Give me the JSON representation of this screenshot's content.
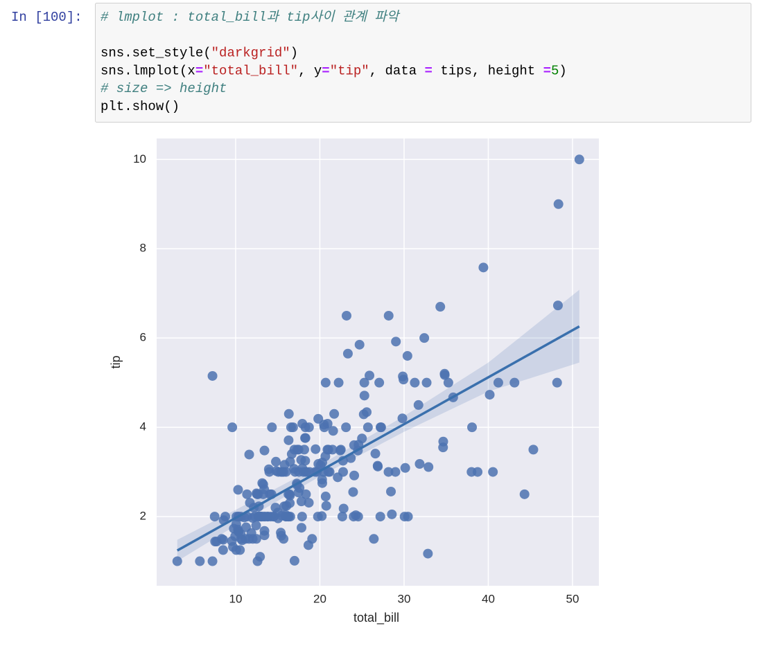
{
  "cell": {
    "prompt": "In [100]:",
    "lines": [
      [
        {
          "text": "# lmplot : total_bill과 tip사이 관계 파악",
          "kind": "comment"
        }
      ],
      [],
      [
        {
          "text": "sns.set_style(",
          "kind": "plain"
        },
        {
          "text": "\"darkgrid\"",
          "kind": "string"
        },
        {
          "text": ")",
          "kind": "plain"
        }
      ],
      [
        {
          "text": "sns.lmplot(x",
          "kind": "plain"
        },
        {
          "text": "=",
          "kind": "op"
        },
        {
          "text": "\"total_bill\"",
          "kind": "string"
        },
        {
          "text": ", y",
          "kind": "plain"
        },
        {
          "text": "=",
          "kind": "op"
        },
        {
          "text": "\"tip\"",
          "kind": "string"
        },
        {
          "text": ", data ",
          "kind": "plain"
        },
        {
          "text": "=",
          "kind": "op"
        },
        {
          "text": " tips, height ",
          "kind": "plain"
        },
        {
          "text": "=",
          "kind": "op"
        },
        {
          "text": "5",
          "kind": "num"
        },
        {
          "text": ")",
          "kind": "plain"
        }
      ],
      [
        {
          "text": "# size => height",
          "kind": "comment"
        }
      ],
      [
        {
          "text": "plt.show()",
          "kind": "plain"
        }
      ]
    ]
  },
  "chart_data": {
    "type": "scatter",
    "x_label": "total_bill",
    "y_label": "tip",
    "color": "#4c72b0",
    "x": [
      16.99,
      10.34,
      21.01,
      23.68,
      24.59,
      25.29,
      8.77,
      26.88,
      15.04,
      14.78,
      10.27,
      35.26,
      15.42,
      18.43,
      14.83,
      21.58,
      10.33,
      16.29,
      16.97,
      20.65,
      17.92,
      20.29,
      15.77,
      39.42,
      19.82,
      17.81,
      13.37,
      12.69,
      21.7,
      19.65,
      9.55,
      18.35,
      15.06,
      20.69,
      17.78,
      24.06,
      16.31,
      16.93,
      18.69,
      31.27,
      16.04,
      17.46,
      13.94,
      9.68,
      30.4,
      18.29,
      22.23,
      32.4,
      28.55,
      18.04,
      12.54,
      10.29,
      34.81,
      9.94,
      25.56,
      19.49,
      38.01,
      26.41,
      11.24,
      48.27,
      20.29,
      13.81,
      11.02,
      18.29,
      17.59,
      20.08,
      16.45,
      3.07,
      20.23,
      15.01,
      12.02,
      17.07,
      26.86,
      25.28,
      14.73,
      10.51,
      17.92,
      27.2,
      22.76,
      17.29,
      19.44,
      16.66,
      10.07,
      32.68,
      15.98,
      34.83,
      13.03,
      18.28,
      24.71,
      21.16,
      28.97,
      22.49,
      5.75,
      16.32,
      22.75,
      40.17,
      27.28,
      12.03,
      21.01,
      12.46,
      11.35,
      15.38,
      44.3,
      22.42,
      20.92,
      15.36,
      20.49,
      25.21,
      18.24,
      14.31,
      14,
      7.25,
      38.07,
      23.95,
      25.71,
      17.31,
      29.93,
      10.65,
      12.43,
      24.08,
      11.69,
      13.42,
      14.26,
      15.95,
      12.48,
      29.8,
      8.52,
      14.52,
      11.38,
      22.82,
      19.08,
      20.27,
      11.17,
      12.26,
      18.26,
      8.51,
      10.33,
      14.15,
      16,
      13.16,
      17.47,
      34.3,
      41.19,
      27.05,
      16.43,
      8.35,
      18.64,
      11.87,
      9.78,
      7.51,
      14.07,
      13.13,
      17.26,
      24.55,
      19.77,
      29.85,
      48.17,
      25,
      13.39,
      16.49,
      21.5,
      12.66,
      16.21,
      13.81,
      17.51,
      24.52,
      20.76,
      31.71,
      10.59,
      10.63,
      50.81,
      15.81,
      7.25,
      31.85,
      16.82,
      32.9,
      17.89,
      14.48,
      9.6,
      34.63,
      34.65,
      23.33,
      45.35,
      23.17,
      40.55,
      20.69,
      20.9,
      30.46,
      18.15,
      23.1,
      15.69,
      19.81,
      28.44,
      15.48,
      16.58,
      7.56,
      10.34,
      43.11,
      13,
      13.51,
      18.71,
      12.74,
      13,
      16.4,
      20.53,
      16.47,
      26.59,
      38.73,
      24.27,
      12.76,
      30.06,
      25.89,
      48.33,
      13.27,
      28.17,
      12.9,
      28.15,
      11.59,
      7.74,
      30.14,
      12.16,
      13.42,
      8.58,
      15.98,
      13.42,
      16.27,
      10.09,
      20.45,
      13.28,
      22.12,
      24.01,
      15.69,
      11.61,
      10.77,
      15.53,
      10.07,
      12.6,
      32.83,
      35.83,
      29.03,
      27.18,
      22.67,
      17.82,
      18.78
    ],
    "values": [
      1.01,
      1.66,
      3.5,
      3.31,
      3.61,
      4.71,
      2,
      3.12,
      1.96,
      3.23,
      1.71,
      5,
      1.57,
      3,
      3.02,
      3.92,
      1.67,
      3.71,
      3.5,
      3.35,
      4.08,
      2.75,
      2.23,
      7.58,
      3.18,
      2.34,
      2,
      2,
      4.3,
      3,
      1.45,
      2.5,
      3,
      2.45,
      3.27,
      3.6,
      2,
      3.07,
      2.31,
      5,
      2.24,
      2.54,
      3.06,
      1.32,
      5.6,
      3,
      5,
      6,
      2.05,
      3,
      2.5,
      2.6,
      5.2,
      1.56,
      4.34,
      3.51,
      3,
      1.5,
      1.76,
      6.73,
      3.21,
      2,
      1.98,
      3.76,
      2.64,
      3.15,
      2.47,
      1,
      2.01,
      2.09,
      1.97,
      3,
      3.14,
      5,
      2.2,
      1.25,
      3.08,
      4,
      3,
      2.71,
      3,
      3.4,
      1.83,
      5,
      2.03,
      5.17,
      2,
      4,
      5.85,
      3,
      3,
      3.5,
      1,
      4.3,
      3.25,
      4.73,
      4,
      1.5,
      3,
      1.5,
      2.5,
      3,
      2.5,
      3.48,
      4.08,
      1.64,
      4.06,
      4.29,
      3.76,
      4,
      3,
      1,
      4,
      2.55,
      4,
      3.5,
      5.07,
      1.5,
      1.8,
      2.92,
      2.31,
      1.68,
      2.5,
      2,
      2.52,
      4.2,
      1.48,
      2,
      2,
      2.18,
      1.5,
      2.83,
      1.5,
      2,
      3.25,
      1.25,
      2,
      2,
      2,
      2.75,
      3.5,
      6.7,
      5,
      5,
      2.3,
      1.5,
      1.36,
      1.63,
      1.73,
      2,
      2.5,
      2,
      2.74,
      2,
      2,
      5.14,
      5,
      3.75,
      2.61,
      2,
      3.5,
      2.5,
      2,
      2,
      3,
      3.48,
      2.24,
      4.5,
      1.61,
      2,
      10,
      3.16,
      5.15,
      3.18,
      4,
      3.11,
      2,
      2,
      4,
      3.55,
      3.68,
      5.65,
      3.5,
      6.5,
      3,
      5,
      3.5,
      2,
      3.5,
      4,
      1.5,
      4.19,
      2.56,
      2.02,
      4,
      1.44,
      2,
      5,
      2,
      2,
      4,
      2.01,
      2,
      2.5,
      4,
      3.23,
      3.41,
      3,
      2.03,
      2.23,
      2,
      5.16,
      9,
      2.5,
      6.5,
      1.1,
      3,
      1.5,
      1.44,
      3.09,
      2.2,
      3.48,
      1.92,
      3,
      1.58,
      2.5,
      2,
      3,
      2.72,
      2.88,
      2,
      3,
      3.39,
      1.47,
      3,
      1.25,
      1,
      1.17,
      4.67,
      5.92,
      2,
      2,
      1.75,
      3
    ],
    "fit": {
      "x": [
        3.07,
        10,
        20,
        30,
        40,
        50.81
      ],
      "values": [
        1.24,
        1.97,
        3.02,
        4.07,
        5.12,
        6.26
      ],
      "lower": [
        1.0,
        1.8,
        2.9,
        3.9,
        4.8,
        5.45
      ],
      "upper": [
        1.48,
        2.15,
        3.15,
        4.25,
        5.45,
        7.08
      ]
    },
    "xlim": [
      0.62,
      53.13
    ],
    "ylim": [
      0.45,
      10.47
    ],
    "xticks": [
      10,
      20,
      30,
      40,
      50
    ],
    "yticks": [
      2,
      4,
      6,
      8,
      10
    ],
    "grid": true
  }
}
